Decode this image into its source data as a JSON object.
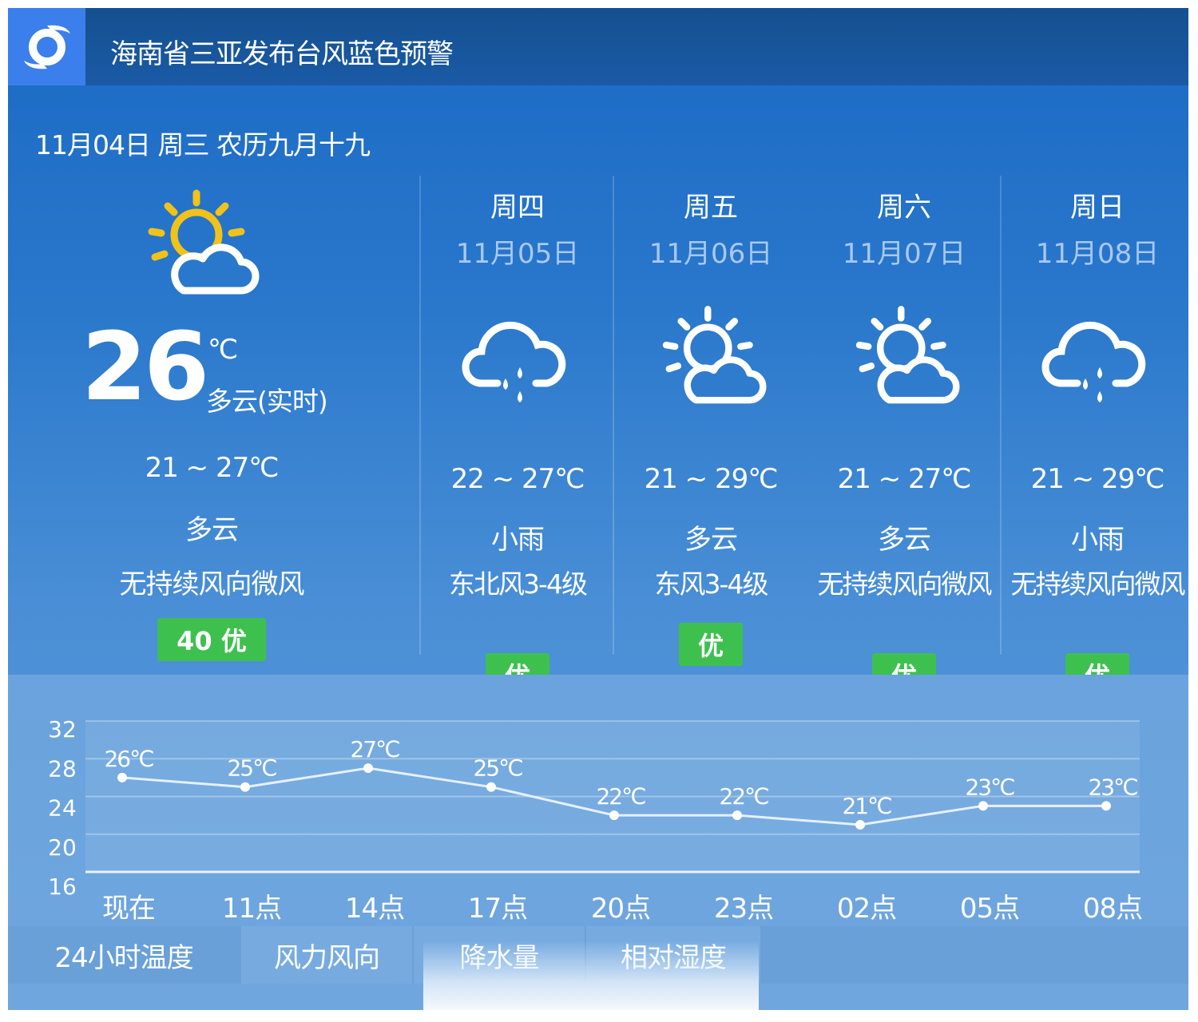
{
  "header": {
    "icon": "typhoon-icon",
    "title": "海南省三亚发布台风蓝色预警"
  },
  "date_line": "11月04日 周三 农历九月十九",
  "current": {
    "icon": "sun-cloud-icon",
    "temp": "26",
    "unit": "℃",
    "desc": "多云(实时)",
    "range": "21 ~ 27℃",
    "weather": "多云",
    "wind": "无持续风向微风",
    "aqi": "40  优"
  },
  "forecast": [
    {
      "day": "周四",
      "date": "11月05日",
      "icon": "rain-cloud-icon",
      "range": "22 ~ 27℃",
      "weather": "小雨",
      "wind": "东北风3-4级",
      "aqi": "优"
    },
    {
      "day": "周五",
      "date": "11月06日",
      "icon": "sun-cloud-icon",
      "range": "21 ~ 29℃",
      "weather": "多云",
      "wind": "东风3-4级",
      "aqi": "优"
    },
    {
      "day": "周六",
      "date": "11月07日",
      "icon": "sun-cloud-icon",
      "range": "21 ~ 27℃",
      "weather": "多云",
      "wind": "无持续风向微风",
      "aqi": "优"
    },
    {
      "day": "周日",
      "date": "11月08日",
      "icon": "rain-cloud-icon",
      "range": "21 ~ 29℃",
      "weather": "小雨",
      "wind": "无持续风向微风",
      "aqi": "优"
    }
  ],
  "colors": {
    "header": "#1a5aa6",
    "icon_box": "#3b7fec",
    "aqi_good": "#3ec04f"
  },
  "chart_data": {
    "type": "line",
    "categories": [
      "现在",
      "11点",
      "14点",
      "17点",
      "20点",
      "23点",
      "02点",
      "05点",
      "08点"
    ],
    "values": [
      26,
      25,
      27,
      25,
      22,
      22,
      21,
      23,
      23
    ],
    "data_labels": [
      "26℃",
      "25℃",
      "27℃",
      "25℃",
      "22℃",
      "22℃",
      "21℃",
      "23℃",
      "23℃"
    ],
    "yticks": [
      32,
      28,
      24,
      20,
      16
    ],
    "ylim": [
      16,
      32
    ],
    "grid": true
  },
  "tabs": [
    {
      "label": "24小时温度",
      "active": true
    },
    {
      "label": "风力风向"
    },
    {
      "label": "降水量"
    },
    {
      "label": "相对湿度"
    }
  ]
}
